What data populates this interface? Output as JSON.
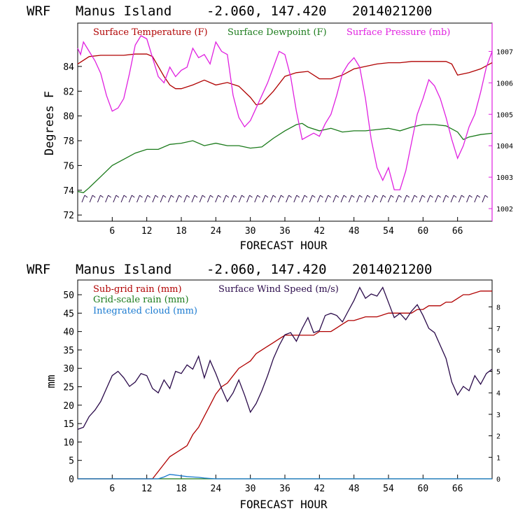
{
  "charts": {
    "top": {
      "title": {
        "model": "WRF",
        "location": "Manus Island",
        "coords": "-2.060, 147.420",
        "run": "2014021200"
      },
      "xlabel": "FORECAST HOUR",
      "ylabel": "Degrees F",
      "x_ticks": [
        "6",
        "12",
        "18",
        "24",
        "30",
        "36",
        "42",
        "48",
        "54",
        "60",
        "66"
      ],
      "y_ticks": [
        "72",
        "74",
        "76",
        "78",
        "80",
        "82",
        "84"
      ],
      "y2_ticks": [
        "1002",
        "1003",
        "1004",
        "1005",
        "1006",
        "1007"
      ],
      "legend": [
        {
          "label": "Surface Temperature (F)",
          "color": "#b00000"
        },
        {
          "label": "Surface Dewpoint (F)",
          "color": "#1a7a1a"
        },
        {
          "label": "Surface Pressure (mb)",
          "color": "#e020e0"
        }
      ]
    },
    "bottom": {
      "title": {
        "model": "WRF",
        "location": "Manus Island",
        "coords": "-2.060, 147.420",
        "run": "2014021200"
      },
      "xlabel": "FORECAST HOUR",
      "ylabel": "mm",
      "x_ticks": [
        "6",
        "12",
        "18",
        "24",
        "30",
        "36",
        "42",
        "48",
        "54",
        "60",
        "66"
      ],
      "y_ticks": [
        "0",
        "5",
        "10",
        "15",
        "20",
        "25",
        "30",
        "35",
        "40",
        "45",
        "50"
      ],
      "y2_ticks": [
        "0",
        "1",
        "2",
        "3",
        "4",
        "5",
        "6",
        "7",
        "8"
      ],
      "legend": [
        {
          "label": "Sub-grid rain (mm)",
          "color": "#b00000"
        },
        {
          "label": "Surface Wind Speed (m/s)",
          "color": "#2a0a4a"
        },
        {
          "label": "Grid-scale rain (mm)",
          "color": "#1a7a1a"
        },
        {
          "label": "Integrated cloud (mm)",
          "color": "#1a7ad0"
        }
      ]
    }
  },
  "chart_data": [
    {
      "type": "line",
      "title": "WRF Manus Island -2.060, 147.420 2014021200",
      "xlabel": "FORECAST HOUR",
      "ylabel": "Degrees F",
      "xlim": [
        0,
        72
      ],
      "ylim": [
        71.5,
        87.5
      ],
      "y2lim": [
        1001.6,
        1007.9
      ],
      "series": [
        {
          "name": "Surface Temperature (F)",
          "axis": "left",
          "x": [
            0,
            2,
            4,
            6,
            8,
            10,
            12,
            13,
            14,
            15,
            16,
            17,
            18,
            20,
            22,
            24,
            26,
            28,
            30,
            31,
            32,
            34,
            36,
            38,
            40,
            42,
            44,
            46,
            48,
            50,
            52,
            54,
            56,
            58,
            60,
            62,
            64,
            65,
            66,
            68,
            70,
            72
          ],
          "values": [
            84.2,
            84.8,
            84.9,
            84.9,
            84.9,
            85.0,
            85.0,
            84.8,
            84.0,
            83.2,
            82.5,
            82.2,
            82.2,
            82.5,
            82.9,
            82.5,
            82.7,
            82.4,
            81.5,
            80.9,
            81.0,
            82.0,
            83.2,
            83.5,
            83.6,
            83.0,
            83.0,
            83.3,
            83.8,
            84.0,
            84.2,
            84.3,
            84.3,
            84.4,
            84.4,
            84.4,
            84.4,
            84.2,
            83.3,
            83.5,
            83.8,
            84.3
          ]
        },
        {
          "name": "Surface Dewpoint (F)",
          "axis": "left",
          "x": [
            0,
            1,
            2,
            4,
            6,
            8,
            10,
            12,
            14,
            16,
            18,
            20,
            22,
            24,
            26,
            28,
            30,
            32,
            34,
            36,
            38,
            39,
            40,
            42,
            44,
            46,
            48,
            50,
            52,
            54,
            56,
            58,
            60,
            62,
            64,
            66,
            67,
            68,
            70,
            72
          ],
          "values": [
            73.9,
            73.8,
            74.2,
            75.1,
            76.0,
            76.5,
            77.0,
            77.3,
            77.3,
            77.7,
            77.8,
            78.0,
            77.6,
            77.8,
            77.6,
            77.6,
            77.4,
            77.5,
            78.2,
            78.8,
            79.3,
            79.4,
            79.1,
            78.8,
            79.0,
            78.7,
            78.8,
            78.8,
            78.9,
            79.0,
            78.8,
            79.1,
            79.3,
            79.3,
            79.2,
            78.7,
            78.1,
            78.3,
            78.5,
            78.6
          ]
        },
        {
          "name": "Surface Pressure (mb)",
          "axis": "right",
          "x": [
            0,
            0.5,
            1,
            2,
            3,
            4,
            5,
            6,
            7,
            8,
            9,
            10,
            11,
            12,
            13,
            14,
            15,
            16,
            17,
            18,
            19,
            20,
            21,
            22,
            23,
            24,
            25,
            26,
            27,
            28,
            29,
            30,
            31,
            32,
            33,
            34,
            35,
            36,
            37,
            38,
            39,
            40,
            41,
            42,
            43,
            44,
            45,
            46,
            47,
            48,
            49,
            50,
            51,
            52,
            53,
            54,
            55,
            56,
            57,
            58,
            59,
            60,
            61,
            62,
            63,
            64,
            65,
            66,
            67,
            68,
            69,
            70,
            71,
            72
          ],
          "values": [
            1007.1,
            1006.9,
            1007.3,
            1007.0,
            1006.7,
            1006.3,
            1005.6,
            1005.1,
            1005.2,
            1005.5,
            1006.3,
            1007.2,
            1007.5,
            1007.4,
            1006.8,
            1006.2,
            1006.0,
            1006.5,
            1006.2,
            1006.4,
            1006.5,
            1007.1,
            1006.8,
            1006.9,
            1006.6,
            1007.3,
            1007.0,
            1006.9,
            1005.6,
            1004.9,
            1004.6,
            1004.8,
            1005.2,
            1005.6,
            1006.0,
            1006.5,
            1007.0,
            1006.9,
            1006.2,
            1005.1,
            1004.2,
            1004.3,
            1004.4,
            1004.3,
            1004.7,
            1005.0,
            1005.6,
            1006.3,
            1006.6,
            1006.8,
            1006.5,
            1005.5,
            1004.2,
            1003.3,
            1002.9,
            1003.3,
            1002.6,
            1002.6,
            1003.2,
            1004.1,
            1005.0,
            1005.5,
            1006.1,
            1005.9,
            1005.5,
            1004.9,
            1004.2,
            1003.6,
            1004.0,
            1004.6,
            1005.0,
            1005.7,
            1006.5,
            1007.0
          ]
        }
      ],
      "wind_barbs": "row of wind barbs along the bottom of the temperature panel"
    },
    {
      "type": "line",
      "title": "WRF Manus Island -2.060, 147.420 2014021200",
      "xlabel": "FORECAST HOUR",
      "ylabel": "mm",
      "xlim": [
        0,
        72
      ],
      "ylim": [
        0,
        54
      ],
      "y2lim": [
        0,
        9.25
      ],
      "series": [
        {
          "name": "Sub-grid rain (mm)",
          "axis": "left",
          "x": [
            0,
            12,
            13,
            14,
            15,
            16,
            17,
            18,
            19,
            20,
            21,
            22,
            23,
            24,
            25,
            26,
            27,
            28,
            29,
            30,
            31,
            32,
            33,
            34,
            35,
            36,
            37,
            38,
            40,
            41,
            42,
            43,
            44,
            45,
            46,
            47,
            48,
            50,
            52,
            54,
            56,
            57,
            58,
            59,
            60,
            61,
            62,
            63,
            64,
            65,
            66,
            67,
            68,
            70,
            72
          ],
          "values": [
            0,
            0,
            0,
            2,
            4,
            6,
            7,
            8,
            9,
            12,
            14,
            17,
            20,
            23,
            25,
            26,
            28,
            30,
            31,
            32,
            34,
            35,
            36,
            37,
            38,
            39,
            39,
            39,
            39,
            39,
            40,
            40,
            40,
            41,
            42,
            43,
            43,
            44,
            44,
            45,
            45,
            45,
            45,
            46,
            46,
            47,
            47,
            47,
            48,
            48,
            49,
            50,
            50,
            51,
            51
          ]
        },
        {
          "name": "Surface Wind Speed (m/s)",
          "axis": "right",
          "x": [
            0,
            1,
            2,
            3,
            4,
            5,
            6,
            7,
            8,
            9,
            10,
            11,
            12,
            13,
            14,
            15,
            16,
            17,
            18,
            19,
            20,
            21,
            22,
            23,
            24,
            25,
            26,
            27,
            28,
            29,
            30,
            31,
            32,
            33,
            34,
            35,
            36,
            37,
            38,
            39,
            40,
            41,
            42,
            43,
            44,
            45,
            46,
            47,
            48,
            49,
            50,
            51,
            52,
            53,
            54,
            55,
            56,
            57,
            58,
            59,
            60,
            61,
            62,
            63,
            64,
            65,
            66,
            67,
            68,
            69,
            70,
            71,
            72
          ],
          "values": [
            2.3,
            2.4,
            2.9,
            3.2,
            3.6,
            4.2,
            4.8,
            5.0,
            4.7,
            4.3,
            4.5,
            4.9,
            4.8,
            4.2,
            4.0,
            4.6,
            4.2,
            5.0,
            4.9,
            5.3,
            5.1,
            5.7,
            4.7,
            5.5,
            4.9,
            4.2,
            3.6,
            4.0,
            4.6,
            3.9,
            3.1,
            3.5,
            4.1,
            4.8,
            5.6,
            6.2,
            6.7,
            6.8,
            6.4,
            7.0,
            7.5,
            6.8,
            6.9,
            7.6,
            7.7,
            7.6,
            7.3,
            7.8,
            8.3,
            8.9,
            8.4,
            8.6,
            8.5,
            8.9,
            8.2,
            7.5,
            7.7,
            7.4,
            7.8,
            8.1,
            7.6,
            7.0,
            6.8,
            6.2,
            5.6,
            4.5,
            3.9,
            4.3,
            4.1,
            4.8,
            4.4,
            4.9,
            5.1
          ]
        },
        {
          "name": "Grid-scale rain (mm)",
          "axis": "left",
          "x": [
            0,
            72
          ],
          "values": [
            0,
            0
          ]
        },
        {
          "name": "Integrated cloud (mm)",
          "axis": "left",
          "x": [
            0,
            14,
            15,
            16,
            17,
            18,
            19,
            20,
            21,
            22,
            23,
            24,
            72
          ],
          "values": [
            0,
            0,
            0.5,
            1.2,
            1.0,
            0.8,
            0.6,
            0.5,
            0.4,
            0.2,
            0.1,
            0,
            0
          ]
        }
      ]
    }
  ]
}
